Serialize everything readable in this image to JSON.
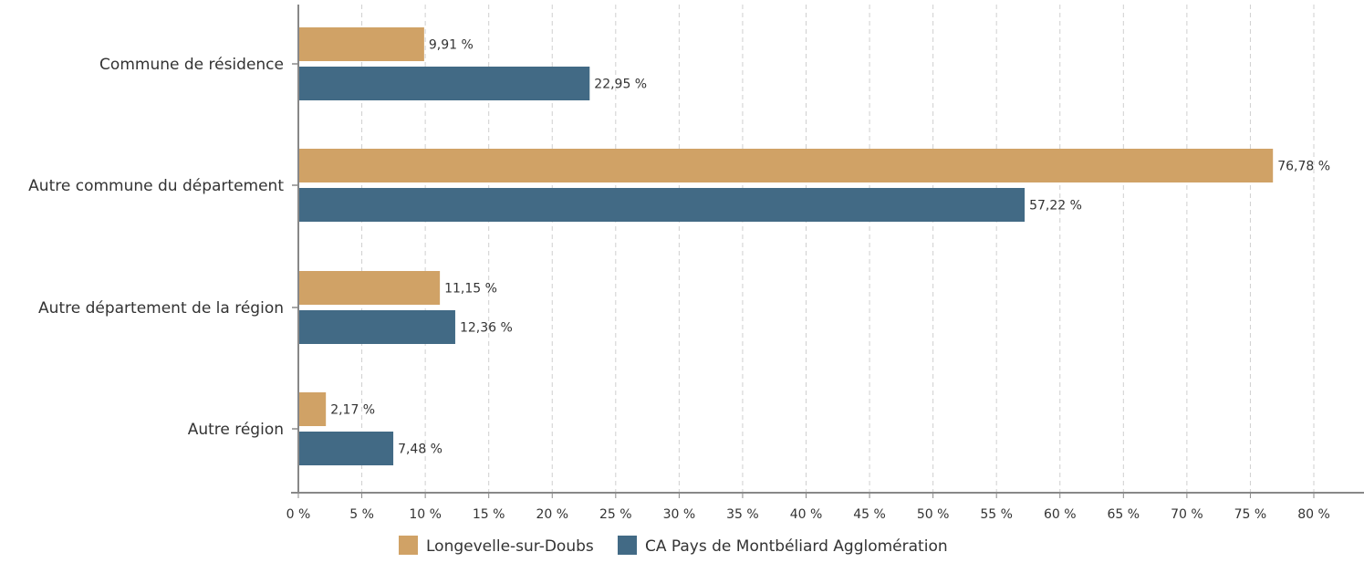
{
  "chart_data": {
    "type": "bar",
    "orientation": "horizontal",
    "categories": [
      "Commune de résidence",
      "Autre commune du département",
      "Autre département de la région",
      "Autre région"
    ],
    "series": [
      {
        "name": "Longevelle-sur-Doubs",
        "color": "#D0A266",
        "values": [
          9.91,
          76.78,
          11.15,
          2.17
        ],
        "labels": [
          "9,91 %",
          "76,78 %",
          "11,15 %",
          "2,17 %"
        ]
      },
      {
        "name": "CA Pays de Montbéliard Agglomération",
        "color": "#426A85",
        "values": [
          22.95,
          57.22,
          12.36,
          7.48
        ],
        "labels": [
          "22,95 %",
          "57,22 %",
          "12,36 %",
          "7,48 %"
        ]
      }
    ],
    "xlim": [
      0,
      80
    ],
    "x_ticks": [
      "0 %",
      "5 %",
      "10 %",
      "15 %",
      "20 %",
      "25 %",
      "30 %",
      "35 %",
      "40 %",
      "45 %",
      "50 %",
      "55 %",
      "60 %",
      "65 %",
      "70 %",
      "75 %",
      "80 %"
    ],
    "grid": "vertical-dashed",
    "legend_position": "bottom-center"
  }
}
